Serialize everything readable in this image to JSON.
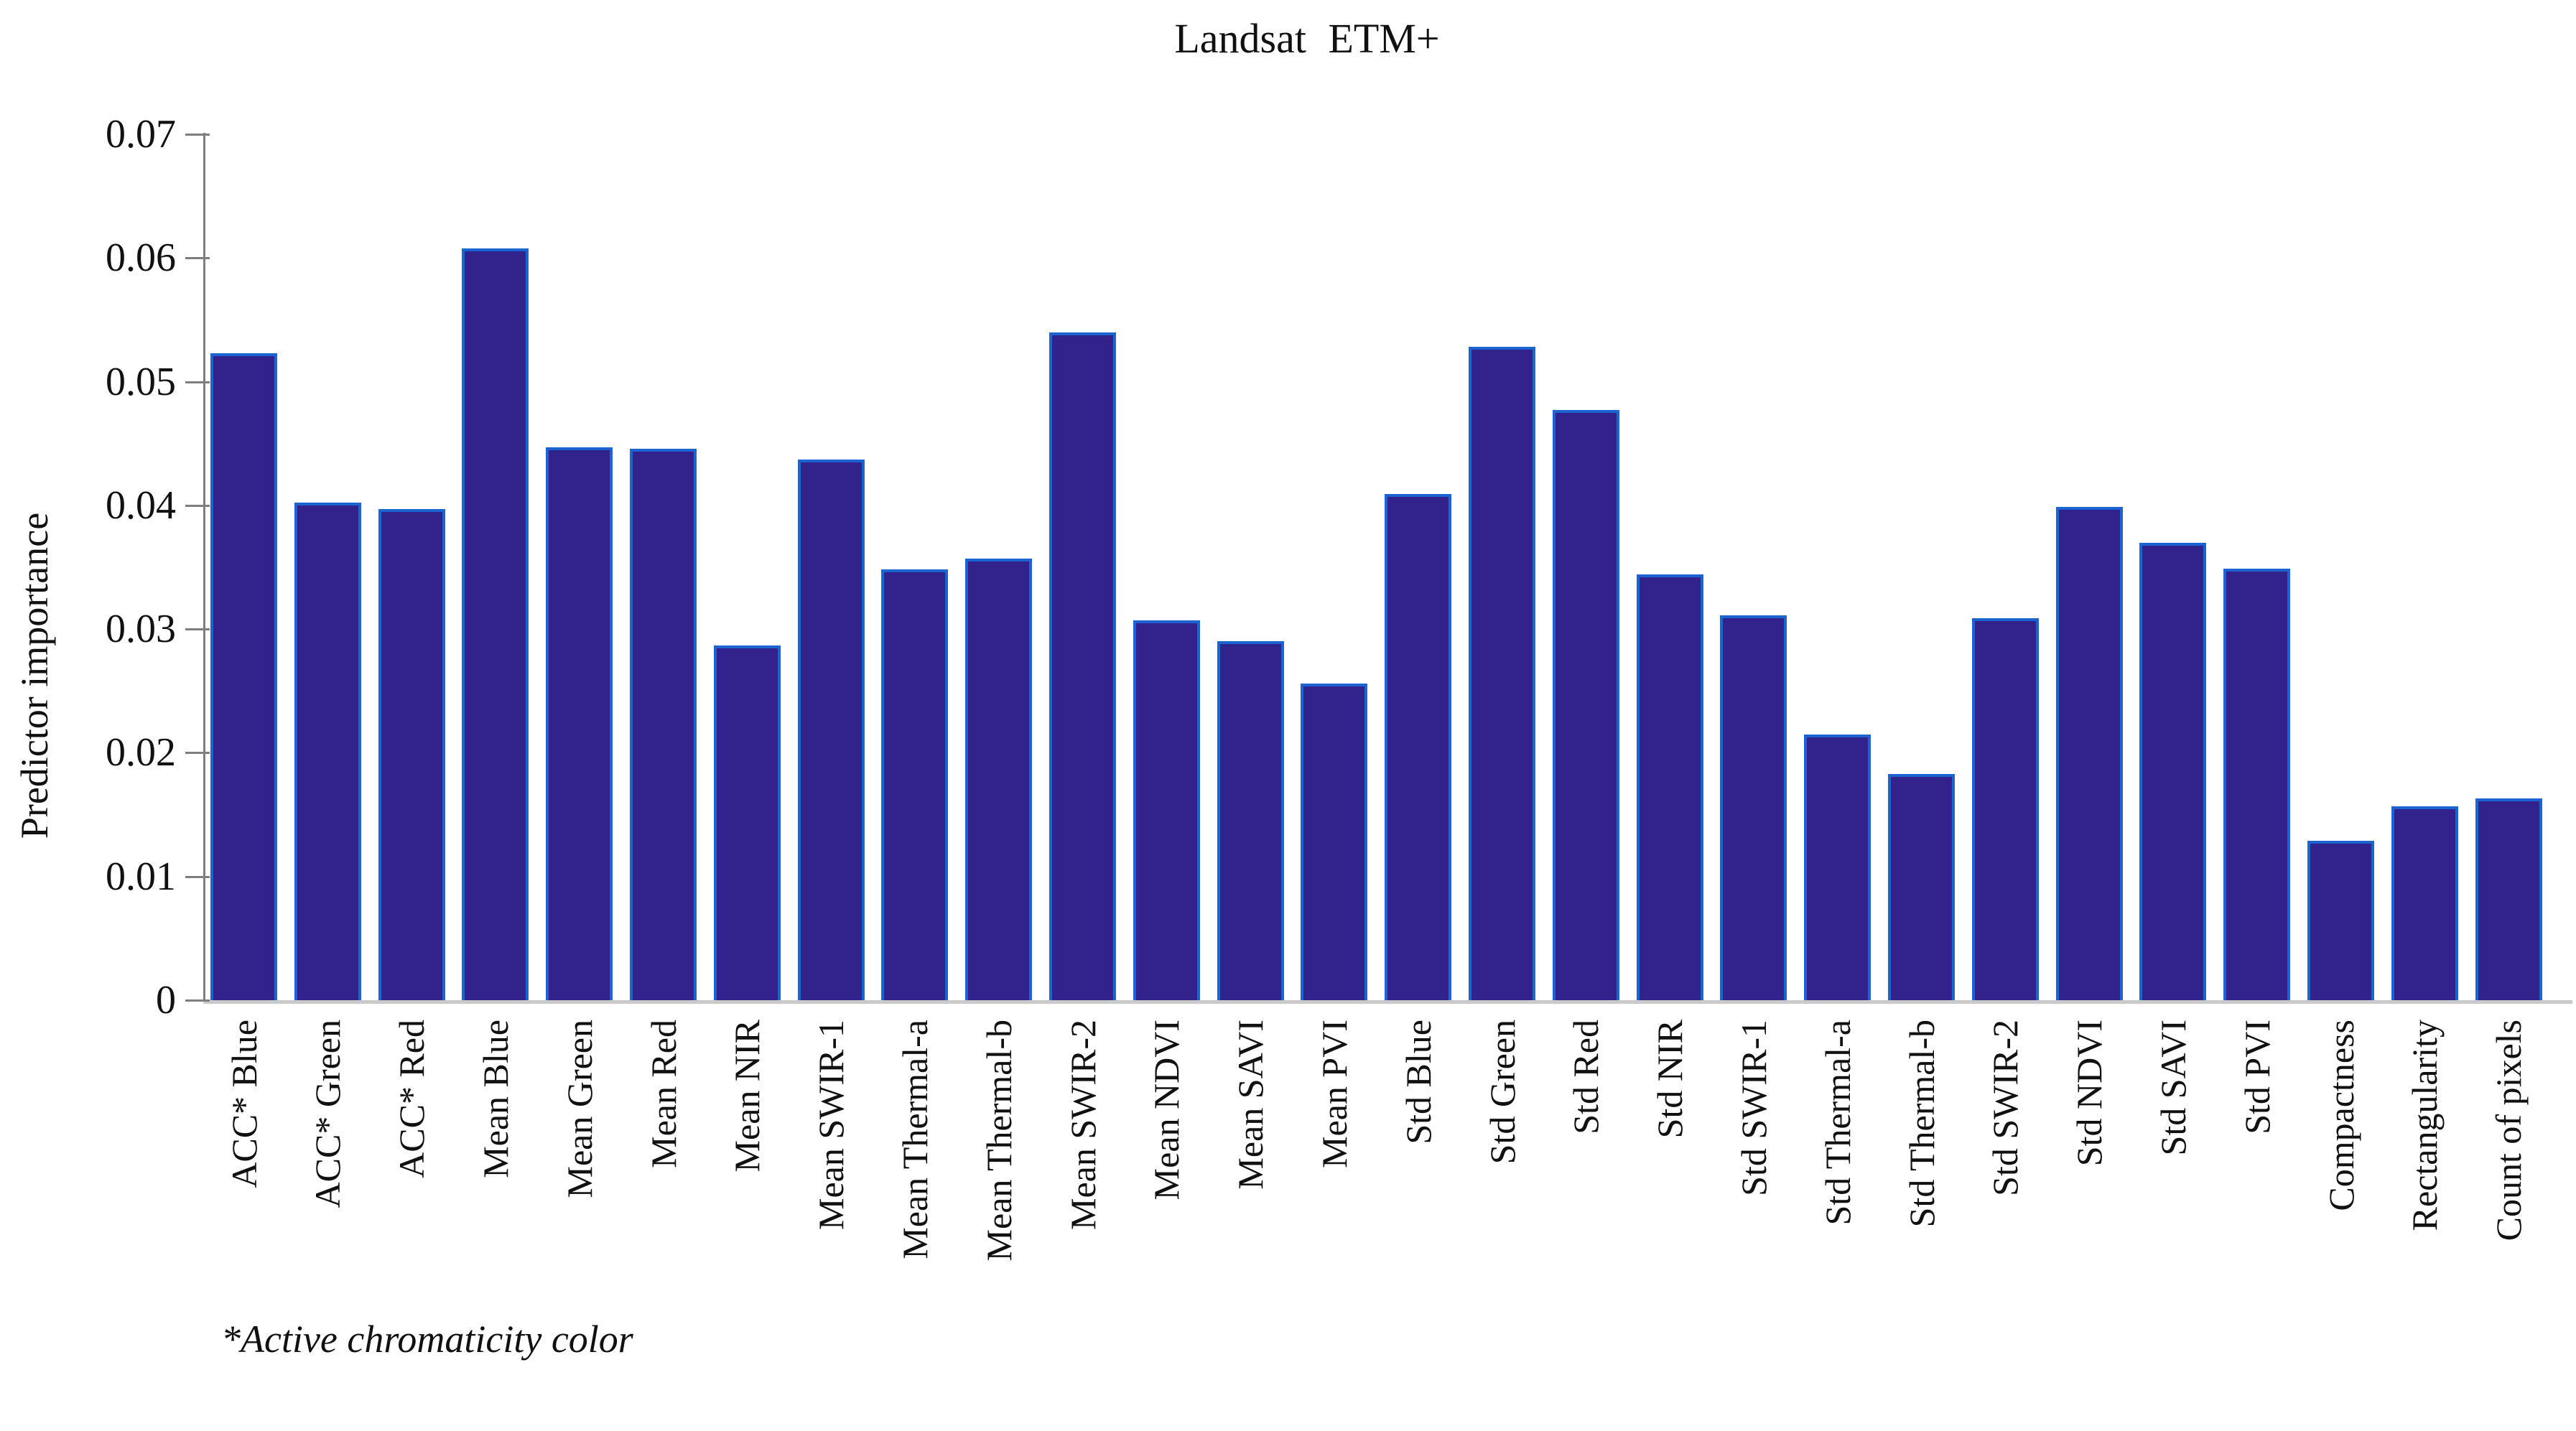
{
  "title": "Landsat ETM+",
  "footnote": "*Active chromaticity color",
  "colors": {
    "bar_fill": "#32228C",
    "bar_border": "#1B64D2",
    "axis": "#7F7F7F",
    "baseline": "#C9C9C9",
    "text": "#111111"
  },
  "chart_data": {
    "type": "bar",
    "title": "Landsat ETM+",
    "xlabel": "",
    "ylabel": "Predictor importance",
    "ylim": [
      0,
      0.07
    ],
    "grid": false,
    "legend": "none",
    "yticks": [
      {
        "label": "0.07",
        "value": 0.07
      },
      {
        "label": "0.06",
        "value": 0.06
      },
      {
        "label": "0.05",
        "value": 0.05
      },
      {
        "label": "0.04",
        "value": 0.04
      },
      {
        "label": "0.03",
        "value": 0.03
      },
      {
        "label": "0.02",
        "value": 0.02
      },
      {
        "label": "0.01",
        "value": 0.01
      },
      {
        "label": "0",
        "value": 0.0
      }
    ],
    "categories": [
      "ACC* Blue",
      "ACC* Green",
      "ACC* Red",
      "Mean Blue",
      "Mean Green",
      "Mean Red",
      "Mean NIR",
      "Mean SWIR-1",
      "Mean Thermal-a",
      "Mean Thermal-b",
      "Mean SWIR-2",
      "Mean NDVI",
      "Mean SAVI",
      "Mean PVI",
      "Std Blue",
      "Std Green",
      "Std Red",
      "Std NIR",
      "Std SWIR-1",
      "Std Thermal-a",
      "Std Thermal-b",
      "Std SWIR-2",
      "Std NDVI",
      "Std SAVI",
      "Std PVI",
      "Compactness",
      "Rectangularity",
      "Count of pixels"
    ],
    "values": [
      0.0523,
      0.0402,
      0.0397,
      0.0608,
      0.0447,
      0.0446,
      0.0287,
      0.0437,
      0.0348,
      0.0357,
      0.054,
      0.0307,
      0.029,
      0.0256,
      0.0409,
      0.0528,
      0.0477,
      0.0344,
      0.0311,
      0.0215,
      0.0183,
      0.0309,
      0.0399,
      0.037,
      0.0349,
      0.0129,
      0.0157,
      0.0163
    ]
  }
}
